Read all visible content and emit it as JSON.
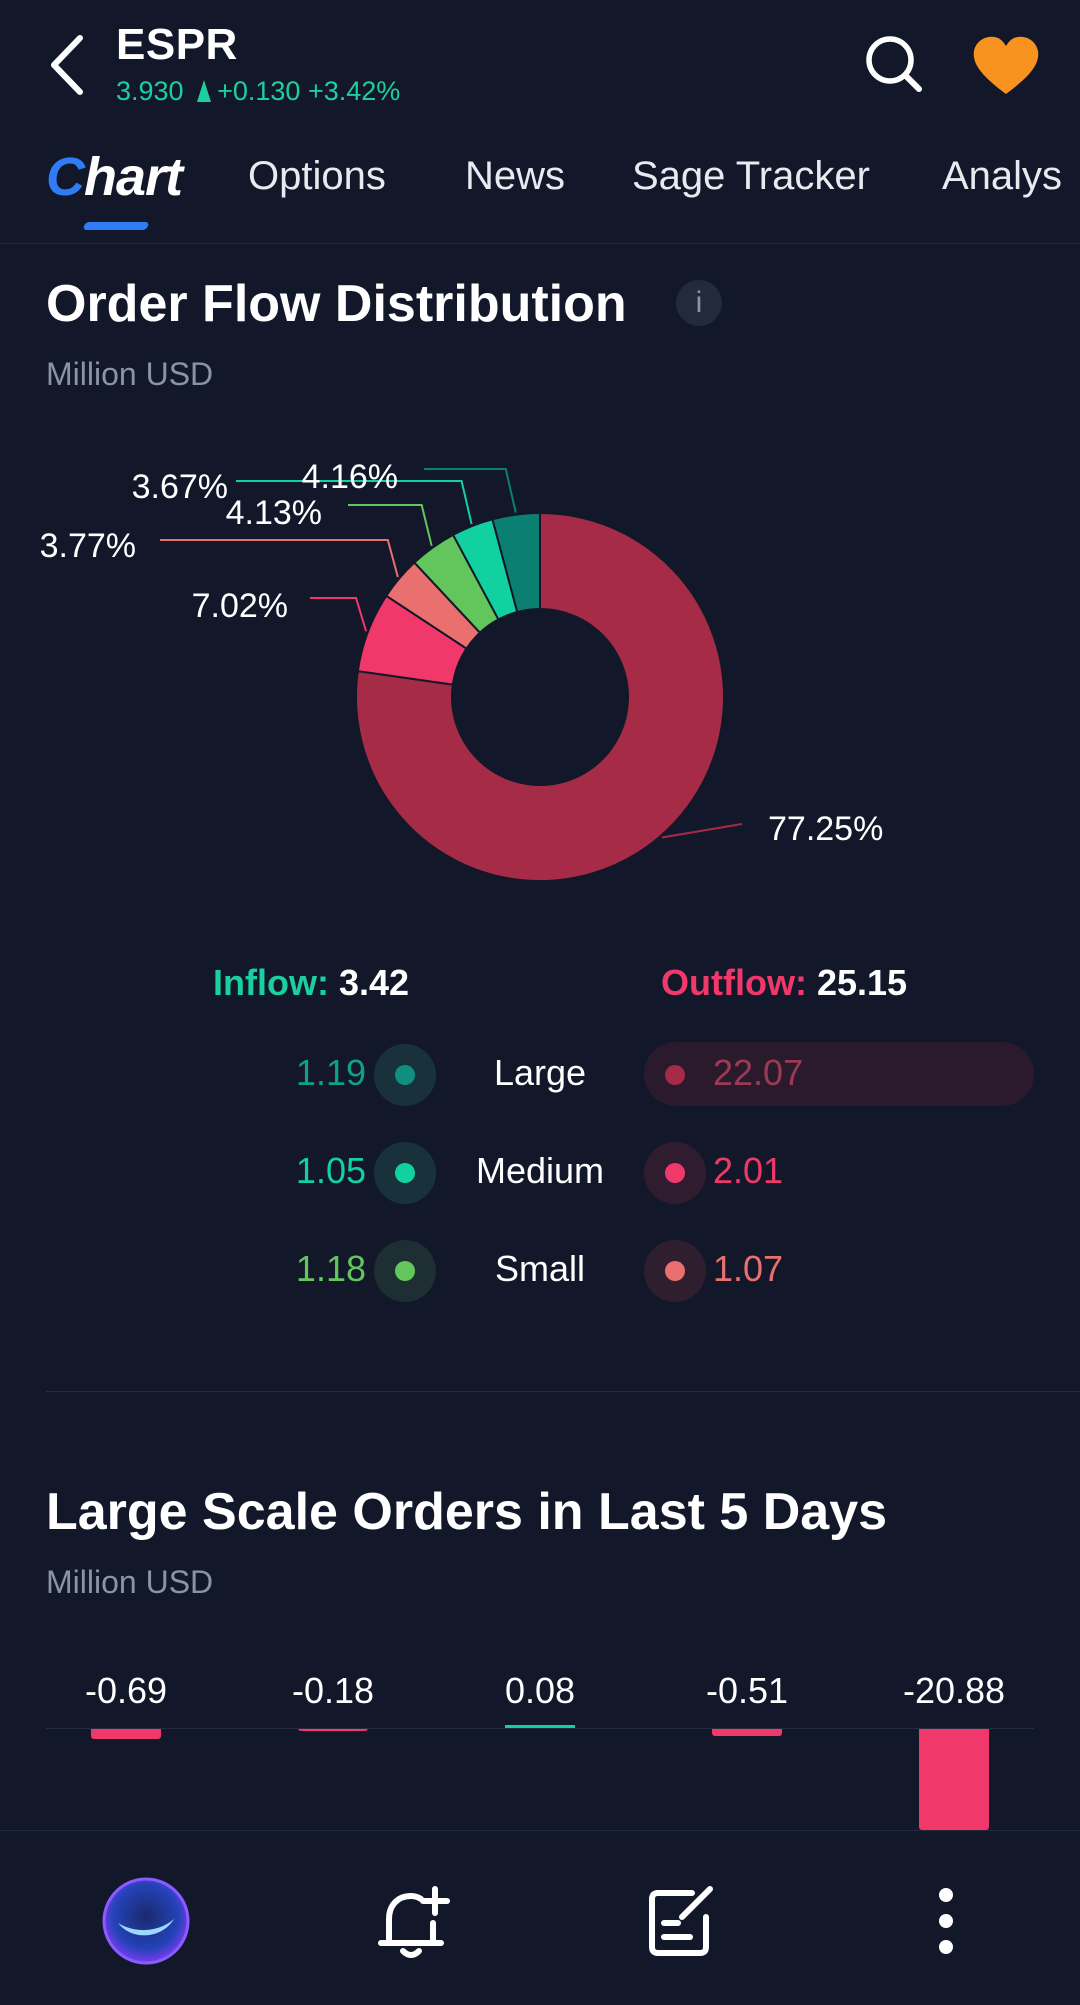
{
  "header": {
    "ticker": "ESPR",
    "price": "3.930",
    "change": "+0.130",
    "change_pct": "+3.42%",
    "accent_up": "#1ccf9e",
    "favorite_color": "#f7931e"
  },
  "tabs": [
    {
      "label": "Chart",
      "active": true
    },
    {
      "label": "Options"
    },
    {
      "label": "News"
    },
    {
      "label": "Sage Tracker"
    },
    {
      "label": "Analys"
    }
  ],
  "order_flow": {
    "title": "Order Flow Distribution",
    "subtitle": "Million USD",
    "info_icon_label": "i",
    "inflow_label": "Inflow:",
    "inflow_value": "3.42",
    "outflow_label": "Outflow:",
    "outflow_value": "25.15",
    "rows": [
      {
        "size": "Large",
        "in": "1.19",
        "out": "22.07"
      },
      {
        "size": "Medium",
        "in": "1.05",
        "out": "2.01"
      },
      {
        "size": "Small",
        "in": "1.18",
        "out": "1.07"
      }
    ]
  },
  "chart_data": [
    {
      "type": "pie",
      "slices": [
        {
          "label": "Large outflow",
          "value": 77.25,
          "display": "77.25%",
          "color": "#a52b47"
        },
        {
          "label": "Medium outflow",
          "value": 7.02,
          "display": "7.02%",
          "color": "#f0386b"
        },
        {
          "label": "Small outflow",
          "value": 3.77,
          "display": "3.77%",
          "color": "#ea6f6f"
        },
        {
          "label": "Small inflow",
          "value": 4.13,
          "display": "4.13%",
          "color": "#62c65d"
        },
        {
          "label": "Medium inflow",
          "value": 3.67,
          "display": "3.67%",
          "color": "#12d1a0"
        },
        {
          "label": "Large inflow",
          "value": 4.16,
          "display": "4.16%",
          "color": "#0a7f72"
        }
      ]
    },
    {
      "type": "bar",
      "title": "Large Scale Orders in Last 5 Days",
      "subtitle": "Million USD",
      "values": [
        -0.69,
        -0.18,
        0.08,
        -0.51,
        -20.88
      ],
      "labels": [
        "-0.69",
        "-0.18",
        "0.08",
        "-0.51",
        "-20.88"
      ]
    }
  ],
  "bottom_nav": {
    "items": [
      "assistant-orb",
      "add-alert-icon",
      "notes-icon",
      "more-icon"
    ]
  }
}
